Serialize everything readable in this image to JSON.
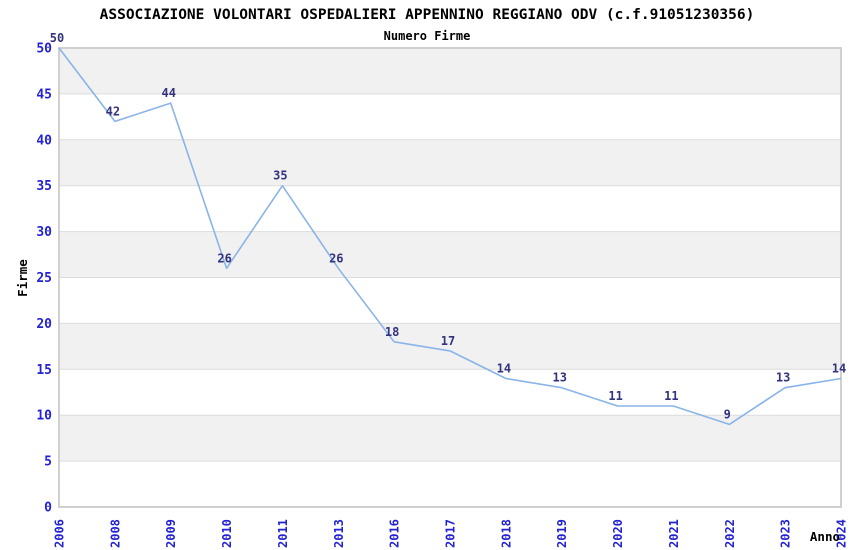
{
  "chart_data": {
    "type": "line",
    "title": "ASSOCIAZIONE VOLONTARI OSPEDALIERI APPENNINO REGGIANO ODV (c.f.91051230356)",
    "subtitle": "Numero Firme",
    "xlabel": "Anno",
    "ylabel": "Firme",
    "categories": [
      "2006",
      "2008",
      "2009",
      "2010",
      "2011",
      "2013",
      "2016",
      "2017",
      "2018",
      "2019",
      "2020",
      "2021",
      "2022",
      "2023",
      "2024"
    ],
    "series": [
      {
        "name": "Numero Firme",
        "values": [
          50,
          42,
          44,
          26,
          35,
          26,
          18,
          17,
          14,
          13,
          11,
          11,
          9,
          13,
          14
        ]
      }
    ],
    "point_labels": [
      "50",
      "42",
      "44",
      "26",
      "35",
      "26",
      "18",
      "17",
      "14",
      "13",
      "11",
      "11",
      "9",
      "13",
      "14"
    ],
    "ylim": [
      0,
      50
    ],
    "ytick_step": 5,
    "ytick_labels": [
      "0",
      "5",
      "10",
      "15",
      "20",
      "25",
      "30",
      "35",
      "40",
      "45",
      "50"
    ],
    "grid": "horizontal-bands",
    "legend": "none",
    "colors": {
      "line": "#8ab4e8",
      "tick_label": "#2323d3",
      "point_label": "#32327d",
      "band_fill": "#f1f1f1",
      "gridline": "#dcdcdc",
      "plot_border": "#d0d0d0",
      "title": "#000000",
      "subtitle": "#3c3c3c",
      "axis_title": "#1a1a1a",
      "background": "#ffffff"
    }
  }
}
